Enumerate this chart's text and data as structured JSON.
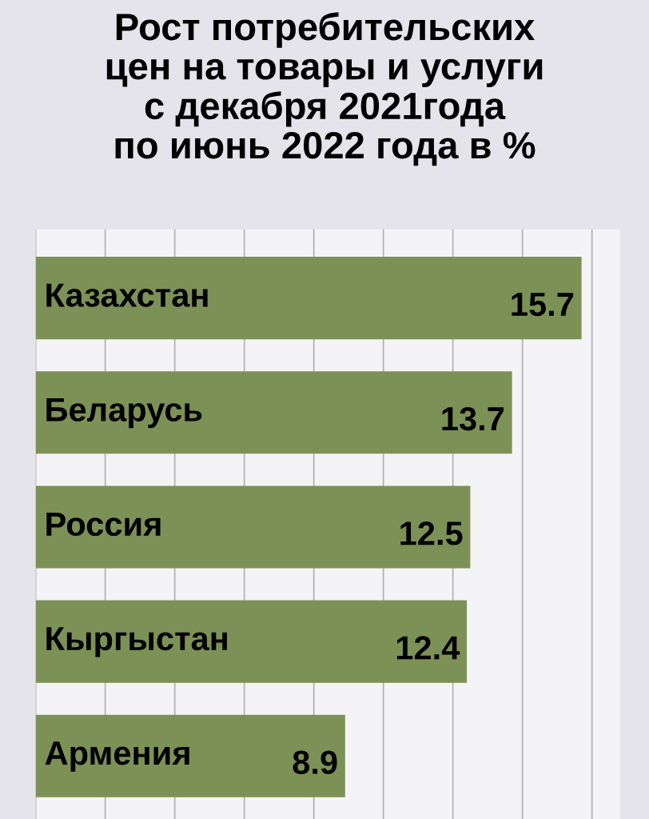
{
  "chart_data": {
    "type": "bar",
    "orientation": "horizontal",
    "title": "Рост потребительских\nцен на товары и услуги\nс декабря 2021года\nпо июнь 2022 года в %",
    "categories": [
      "Казахстан",
      "Беларусь",
      "Россия",
      "Кыргыстан",
      "Армения"
    ],
    "values": [
      15.7,
      13.7,
      12.5,
      12.4,
      8.9
    ],
    "color": "#7c9156",
    "xlim": [
      0,
      16.8
    ],
    "xticks": [
      {
        "value": 0,
        "label": null
      },
      {
        "value": 2,
        "label": null
      },
      {
        "value": 4,
        "label": null
      },
      {
        "value": 6,
        "label": null
      },
      {
        "value": 8,
        "label": null
      },
      {
        "value": 10,
        "label": null
      },
      {
        "value": 12,
        "label": null
      },
      {
        "value": 14,
        "label": null
      },
      {
        "value": 16,
        "label": null
      }
    ],
    "grid": "x",
    "data_labels": true
  }
}
